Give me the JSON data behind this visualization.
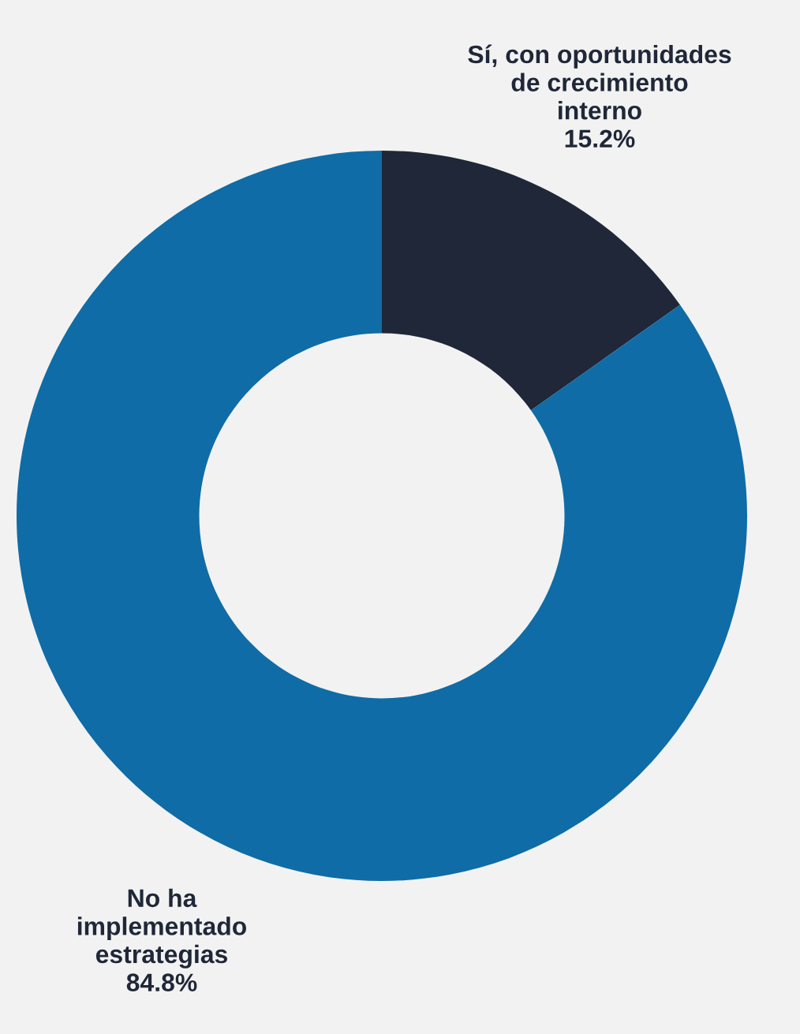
{
  "chart_data": {
    "type": "donut",
    "categories": [
      "Sí, con oportunidades\nde crecimiento\ninterno",
      "No ha\nimplementado\nestrategias"
    ],
    "values": [
      15.2,
      84.8
    ],
    "colors": [
      "#1f2738",
      "#0f6ca6"
    ],
    "value_labels": [
      "15.2%",
      "84.8%"
    ]
  }
}
